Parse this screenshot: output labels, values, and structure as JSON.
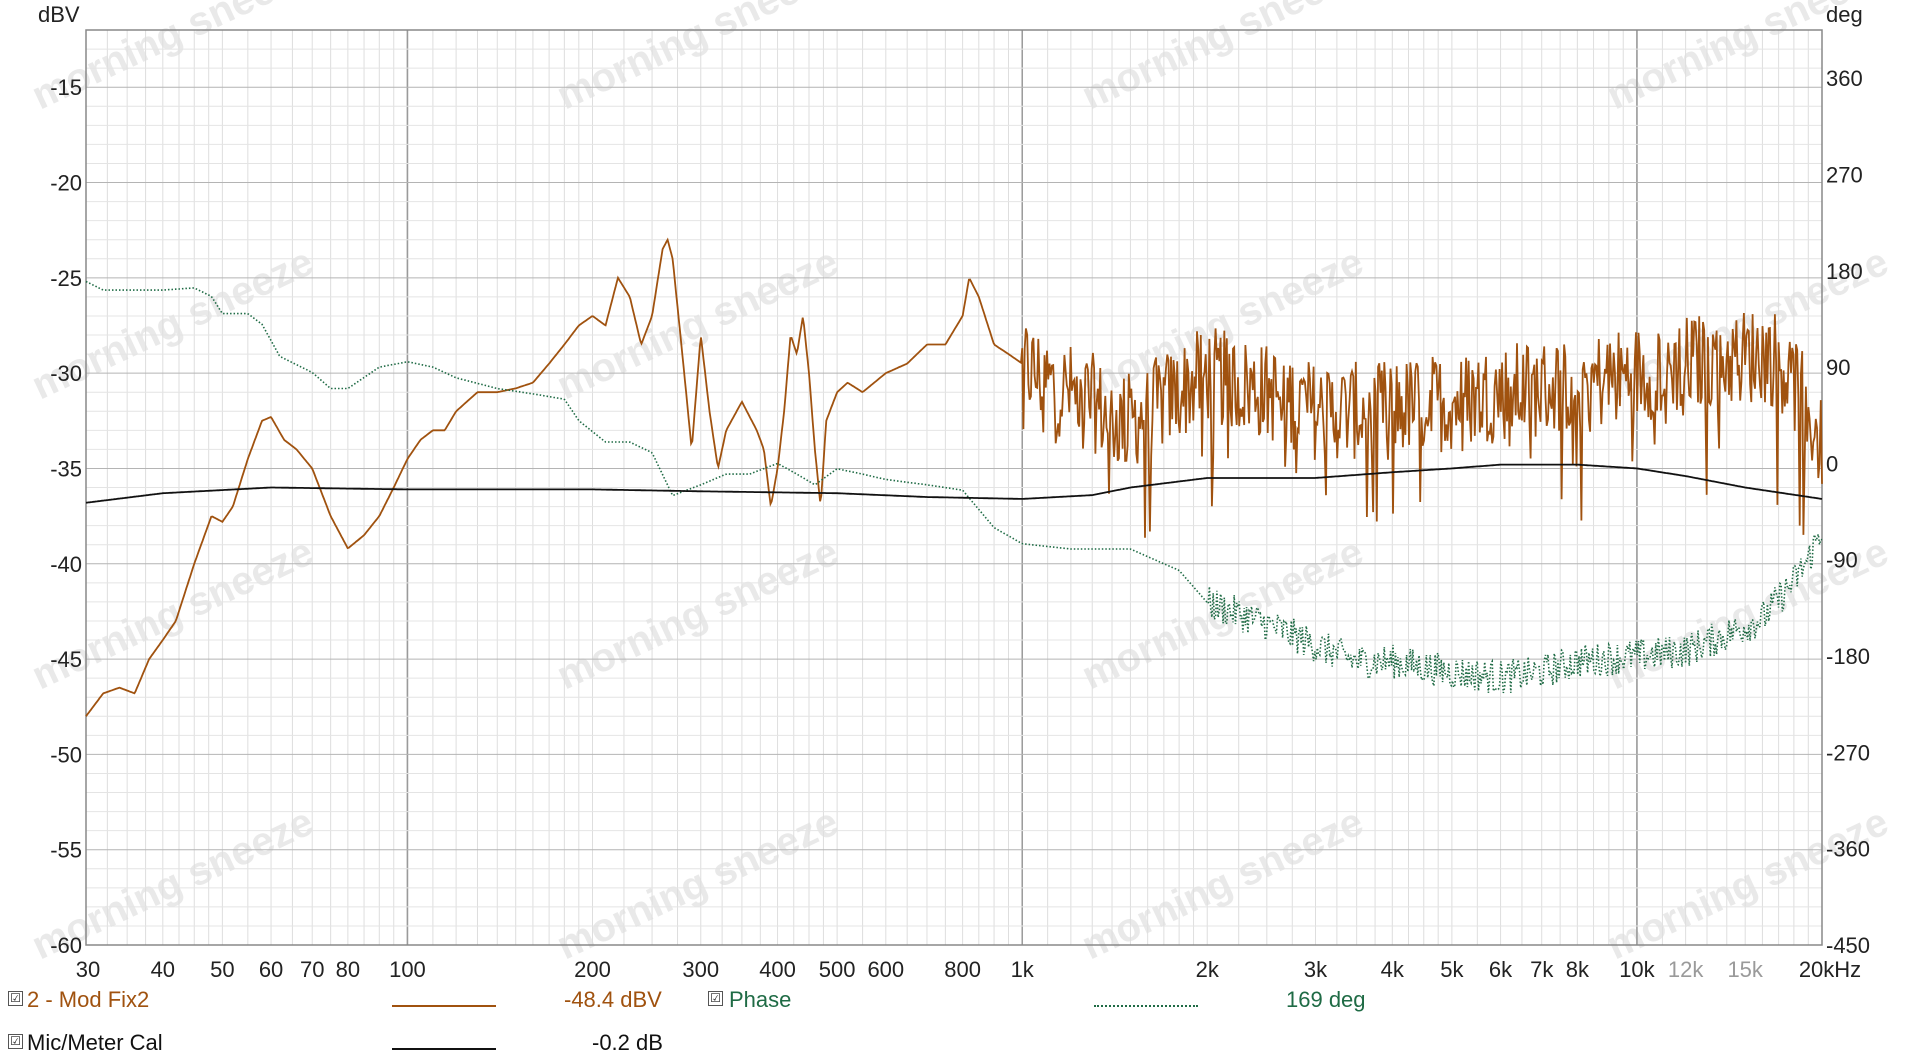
{
  "chart_data": {
    "type": "line",
    "x_scale": "log",
    "xlim": [
      30,
      20000
    ],
    "ylim_left": [
      -60,
      -12
    ],
    "ylim_right": [
      -450,
      405
    ],
    "ylabel_left": "dBV",
    "ylabel_right": "deg",
    "xunit": "kHz",
    "grid": true,
    "x_ticks": [
      {
        "v": 30,
        "label": "30"
      },
      {
        "v": 40,
        "label": "40"
      },
      {
        "v": 50,
        "label": "50"
      },
      {
        "v": 60,
        "label": "60"
      },
      {
        "v": 70,
        "label": "70"
      },
      {
        "v": 80,
        "label": "80"
      },
      {
        "v": 100,
        "label": "100"
      },
      {
        "v": 200,
        "label": "200"
      },
      {
        "v": 300,
        "label": "300"
      },
      {
        "v": 400,
        "label": "400"
      },
      {
        "v": 500,
        "label": "500"
      },
      {
        "v": 600,
        "label": "600"
      },
      {
        "v": 800,
        "label": "800"
      },
      {
        "v": 1000,
        "label": "1k"
      },
      {
        "v": 2000,
        "label": "2k"
      },
      {
        "v": 3000,
        "label": "3k"
      },
      {
        "v": 4000,
        "label": "4k"
      },
      {
        "v": 5000,
        "label": "5k"
      },
      {
        "v": 6000,
        "label": "6k"
      },
      {
        "v": 7000,
        "label": "7k"
      },
      {
        "v": 8000,
        "label": "8k"
      },
      {
        "v": 10000,
        "label": "10k"
      },
      {
        "v": 12000,
        "label": "12k",
        "dim": true
      },
      {
        "v": 15000,
        "label": "15k",
        "dim": true
      },
      {
        "v": 20000,
        "label": "20kHz"
      }
    ],
    "y_ticks_left": [
      "-15",
      "-20",
      "-25",
      "-30",
      "-35",
      "-40",
      "-45",
      "-50",
      "-55",
      "-60"
    ],
    "y_ticks_right": [
      "360",
      "270",
      "180",
      "90",
      "0",
      "-90",
      "-180",
      "-270",
      "-360",
      "-450"
    ],
    "series": [
      {
        "name": "2 - Mod Fix2",
        "axis": "left",
        "color": "#a0520f",
        "style": "solid",
        "noise_from": 1000,
        "points": [
          [
            30,
            -48
          ],
          [
            32,
            -46.8
          ],
          [
            34,
            -46.5
          ],
          [
            36,
            -46.8
          ],
          [
            38,
            -45
          ],
          [
            40,
            -44
          ],
          [
            42,
            -43
          ],
          [
            45,
            -40
          ],
          [
            48,
            -37.5
          ],
          [
            50,
            -37.8
          ],
          [
            52,
            -37
          ],
          [
            55,
            -34.5
          ],
          [
            58,
            -32.5
          ],
          [
            60,
            -32.3
          ],
          [
            63,
            -33.5
          ],
          [
            66,
            -34
          ],
          [
            70,
            -35
          ],
          [
            75,
            -37.5
          ],
          [
            80,
            -39.2
          ],
          [
            85,
            -38.5
          ],
          [
            90,
            -37.5
          ],
          [
            95,
            -36
          ],
          [
            100,
            -34.5
          ],
          [
            105,
            -33.5
          ],
          [
            110,
            -33
          ],
          [
            115,
            -33
          ],
          [
            120,
            -32
          ],
          [
            130,
            -31
          ],
          [
            140,
            -31
          ],
          [
            150,
            -30.8
          ],
          [
            160,
            -30.5
          ],
          [
            170,
            -29.5
          ],
          [
            180,
            -28.5
          ],
          [
            190,
            -27.5
          ],
          [
            200,
            -27
          ],
          [
            210,
            -27.5
          ],
          [
            220,
            -25
          ],
          [
            230,
            -26
          ],
          [
            240,
            -28.5
          ],
          [
            250,
            -27
          ],
          [
            260,
            -23.5
          ],
          [
            265,
            -23
          ],
          [
            270,
            -24
          ],
          [
            280,
            -29
          ],
          [
            290,
            -34
          ],
          [
            300,
            -28
          ],
          [
            310,
            -32
          ],
          [
            320,
            -35
          ],
          [
            330,
            -33
          ],
          [
            350,
            -31.5
          ],
          [
            370,
            -33
          ],
          [
            380,
            -34
          ],
          [
            390,
            -37
          ],
          [
            400,
            -35
          ],
          [
            410,
            -32
          ],
          [
            420,
            -28
          ],
          [
            430,
            -29
          ],
          [
            440,
            -27
          ],
          [
            450,
            -30
          ],
          [
            460,
            -34
          ],
          [
            470,
            -37
          ],
          [
            480,
            -32.5
          ],
          [
            500,
            -31
          ],
          [
            520,
            -30.5
          ],
          [
            550,
            -31
          ],
          [
            600,
            -30
          ],
          [
            650,
            -29.5
          ],
          [
            700,
            -28.5
          ],
          [
            750,
            -28.5
          ],
          [
            800,
            -27
          ],
          [
            820,
            -25
          ],
          [
            850,
            -26
          ],
          [
            900,
            -28.5
          ],
          [
            950,
            -29
          ],
          [
            1000,
            -29.5
          ],
          [
            1100,
            -30.5
          ],
          [
            1200,
            -31
          ],
          [
            1300,
            -31.5
          ],
          [
            1400,
            -32.5
          ],
          [
            1500,
            -32.5
          ],
          [
            1600,
            -32
          ],
          [
            1800,
            -31
          ],
          [
            2000,
            -30
          ],
          [
            2200,
            -30.5
          ],
          [
            2500,
            -31
          ],
          [
            2800,
            -31.5
          ],
          [
            3000,
            -32
          ],
          [
            3500,
            -32
          ],
          [
            4000,
            -31.8
          ],
          [
            5000,
            -31.5
          ],
          [
            6000,
            -31
          ],
          [
            7000,
            -30.8
          ],
          [
            8000,
            -30.5
          ],
          [
            9000,
            -30.3
          ],
          [
            10000,
            -30
          ],
          [
            12000,
            -29.5
          ],
          [
            14000,
            -29.3
          ],
          [
            16000,
            -29
          ],
          [
            17000,
            -29.3
          ],
          [
            18000,
            -30.5
          ],
          [
            19000,
            -32
          ],
          [
            20000,
            -34
          ]
        ]
      },
      {
        "name": "Phase",
        "axis": "right",
        "color": "#1f6b45",
        "style": "dotted",
        "noise_from": 2000,
        "points": [
          [
            30,
            170
          ],
          [
            32,
            162
          ],
          [
            35,
            162
          ],
          [
            40,
            162
          ],
          [
            45,
            164
          ],
          [
            48,
            156
          ],
          [
            50,
            140
          ],
          [
            55,
            140
          ],
          [
            58,
            130
          ],
          [
            62,
            100
          ],
          [
            70,
            85
          ],
          [
            75,
            70
          ],
          [
            80,
            70
          ],
          [
            90,
            90
          ],
          [
            100,
            95
          ],
          [
            110,
            90
          ],
          [
            120,
            80
          ],
          [
            140,
            70
          ],
          [
            160,
            65
          ],
          [
            180,
            60
          ],
          [
            190,
            40
          ],
          [
            210,
            20
          ],
          [
            230,
            20
          ],
          [
            250,
            10
          ],
          [
            270,
            -30
          ],
          [
            300,
            -20
          ],
          [
            330,
            -10
          ],
          [
            360,
            -10
          ],
          [
            400,
            0
          ],
          [
            430,
            -10
          ],
          [
            460,
            -20
          ],
          [
            500,
            -5
          ],
          [
            550,
            -10
          ],
          [
            600,
            -15
          ],
          [
            700,
            -20
          ],
          [
            800,
            -25
          ],
          [
            900,
            -60
          ],
          [
            1000,
            -75
          ],
          [
            1200,
            -80
          ],
          [
            1500,
            -80
          ],
          [
            1800,
            -100
          ],
          [
            2000,
            -130
          ],
          [
            2500,
            -150
          ],
          [
            3000,
            -170
          ],
          [
            3500,
            -185
          ],
          [
            4000,
            -185
          ],
          [
            5000,
            -195
          ],
          [
            6000,
            -200
          ],
          [
            7000,
            -195
          ],
          [
            8000,
            -185
          ],
          [
            10000,
            -180
          ],
          [
            12000,
            -175
          ],
          [
            14000,
            -160
          ],
          [
            16000,
            -145
          ],
          [
            18000,
            -110
          ],
          [
            19000,
            -90
          ],
          [
            20000,
            -60
          ]
        ]
      },
      {
        "name": "Mic/Meter Cal",
        "axis": "left",
        "color": "#111111",
        "style": "solid",
        "noise_from": null,
        "points": [
          [
            30,
            -36.8
          ],
          [
            40,
            -36.3
          ],
          [
            60,
            -36
          ],
          [
            100,
            -36.1
          ],
          [
            200,
            -36.1
          ],
          [
            300,
            -36.2
          ],
          [
            500,
            -36.3
          ],
          [
            700,
            -36.5
          ],
          [
            1000,
            -36.6
          ],
          [
            1300,
            -36.4
          ],
          [
            1500,
            -36
          ],
          [
            2000,
            -35.5
          ],
          [
            3000,
            -35.5
          ],
          [
            4000,
            -35.2
          ],
          [
            5000,
            -35
          ],
          [
            6000,
            -34.8
          ],
          [
            8000,
            -34.8
          ],
          [
            10000,
            -35
          ],
          [
            12000,
            -35.4
          ],
          [
            15000,
            -36
          ],
          [
            20000,
            -36.6
          ]
        ]
      }
    ]
  },
  "legend": {
    "row1": {
      "checkbox": "☑",
      "name": "2 - Mod Fix2",
      "value": "-48.4 dBV",
      "color": "#a0520f",
      "phase_checkbox": "☑",
      "phase_name": "Phase",
      "phase_value": "169 deg",
      "phase_color": "#1f6b45"
    },
    "row2": {
      "checkbox": "☑",
      "name": "Mic/Meter Cal",
      "value": "-0.2 dB",
      "color": "#111111"
    }
  },
  "watermark": "morning sneeze"
}
